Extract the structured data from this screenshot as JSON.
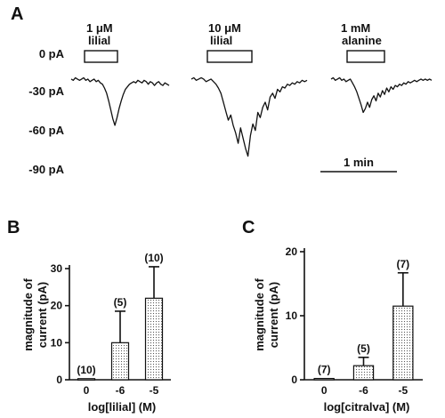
{
  "panel_labels": {
    "a": "A",
    "b": "B",
    "c": "C"
  },
  "chart_data": [
    {
      "type": "line",
      "panel": "A",
      "y_ticks": [
        {
          "value": 0,
          "label": "0 pA"
        },
        {
          "value": -30,
          "label": "-30 pA"
        },
        {
          "value": -60,
          "label": "-60 pA"
        },
        {
          "value": -90,
          "label": "-90 pA"
        }
      ],
      "ylim": [
        -90,
        0
      ],
      "scale_bar": "1 min",
      "traces": [
        {
          "stimulus_line1": "1 μM",
          "stimulus_line2": "lilial",
          "values": [
            -20,
            -21,
            -19,
            -20,
            -21,
            -20,
            -19,
            -21,
            -20,
            -22,
            -21,
            -20,
            -22,
            -21,
            -23,
            -24,
            -27,
            -31,
            -37,
            -44,
            -51,
            -56,
            -50,
            -43,
            -37,
            -32,
            -28,
            -26,
            -24,
            -23,
            -22,
            -23,
            -21,
            -22,
            -23,
            -21,
            -22,
            -24,
            -22,
            -23,
            -25,
            -23,
            -22,
            -24,
            -25,
            -23,
            -24,
            -25
          ]
        },
        {
          "stimulus_line1": "10 μM",
          "stimulus_line2": "lilial",
          "values": [
            -20,
            -19,
            -21,
            -20,
            -19,
            -20,
            -22,
            -21,
            -20,
            -22,
            -24,
            -27,
            -31,
            -38,
            -45,
            -52,
            -48,
            -56,
            -62,
            -70,
            -58,
            -66,
            -74,
            -80,
            -64,
            -55,
            -60,
            -46,
            -50,
            -42,
            -38,
            -44,
            -34,
            -31,
            -35,
            -28,
            -30,
            -26,
            -27,
            -24,
            -25,
            -23,
            -24,
            -22,
            -23,
            -21,
            -22,
            -21
          ]
        },
        {
          "stimulus_line1": "1 mM",
          "stimulus_line2": "alanine",
          "values": [
            -20,
            -19,
            -21,
            -20,
            -19,
            -21,
            -20,
            -22,
            -21,
            -20,
            -23,
            -26,
            -30,
            -35,
            -40,
            -46,
            -43,
            -38,
            -42,
            -36,
            -33,
            -37,
            -31,
            -34,
            -29,
            -32,
            -27,
            -30,
            -26,
            -28,
            -25,
            -26,
            -24,
            -25,
            -23,
            -24,
            -22,
            -23,
            -22,
            -21,
            -22,
            -21,
            -20,
            -21,
            -20,
            -21,
            -20,
            -21
          ]
        }
      ]
    },
    {
      "type": "bar",
      "panel": "B",
      "categories": [
        "0",
        "-6",
        "-5"
      ],
      "values": [
        0.3,
        10,
        22
      ],
      "errors": [
        0,
        8.5,
        8.5
      ],
      "n_labels": [
        "(10)",
        "(5)",
        "(10)"
      ],
      "xlabel": "log[lilial] (M)",
      "ylabel_line1": "magnitude of",
      "ylabel_line2": "current (pA)",
      "y_ticks": [
        "0",
        "10",
        "20",
        "30"
      ],
      "ylim": [
        0,
        30
      ]
    },
    {
      "type": "bar",
      "panel": "C",
      "categories": [
        "0",
        "-6",
        "-5"
      ],
      "values": [
        0.2,
        2.2,
        11.5
      ],
      "errors": [
        0,
        1.3,
        5.2
      ],
      "n_labels": [
        "(7)",
        "(5)",
        "(7)"
      ],
      "xlabel": "log[citralva] (M)",
      "ylabel_line1": "magnitude of",
      "ylabel_line2": "current (pA)",
      "y_ticks": [
        "0",
        "10",
        "20"
      ],
      "ylim": [
        0,
        20
      ]
    }
  ]
}
